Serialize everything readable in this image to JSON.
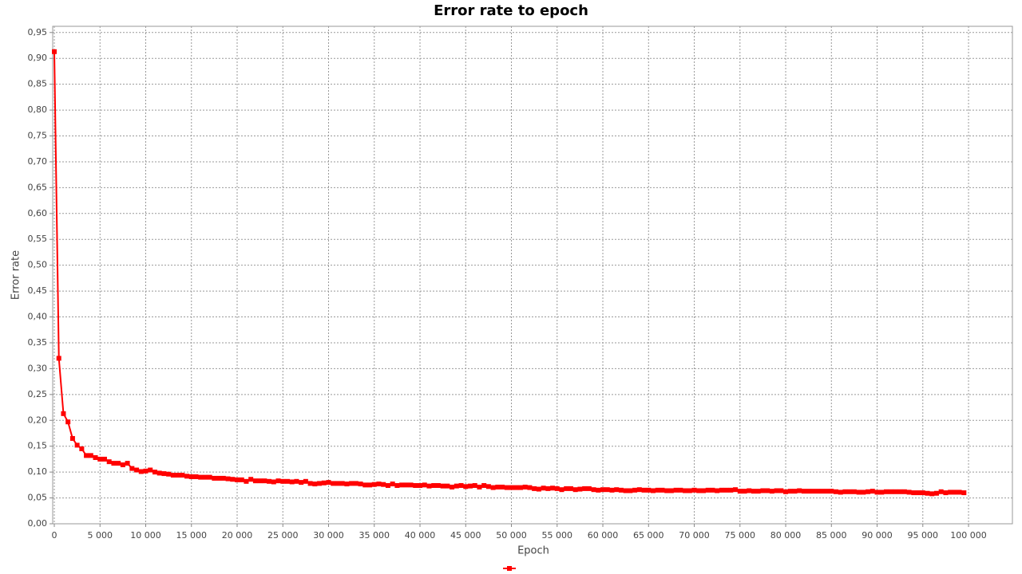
{
  "chart_data": {
    "type": "line",
    "title": "Error rate to epoch",
    "x_label": "Epoch",
    "y_label": "Error rate",
    "x": [
      0,
      500,
      1000,
      1500,
      2000,
      2500,
      3000,
      3500,
      4000,
      4500,
      5000,
      5500,
      6000,
      6500,
      7000,
      7500,
      8000,
      8500,
      9000,
      9500,
      10000,
      10500,
      11000,
      11500,
      12000,
      12500,
      13000,
      13500,
      14000,
      14500,
      15000,
      15500,
      16000,
      16500,
      17000,
      17500,
      18000,
      18500,
      19000,
      19500,
      20000,
      20500,
      21000,
      21500,
      22000,
      22500,
      23000,
      23500,
      24000,
      24500,
      25000,
      25500,
      26000,
      26500,
      27000,
      27500,
      28000,
      28500,
      29000,
      29500,
      30000,
      30500,
      31000,
      31500,
      32000,
      32500,
      33000,
      33500,
      34000,
      34500,
      35000,
      35500,
      36000,
      36500,
      37000,
      37500,
      38000,
      38500,
      39000,
      39500,
      40000,
      40500,
      41000,
      41500,
      42000,
      42500,
      43000,
      43500,
      44000,
      44500,
      45000,
      45500,
      46000,
      46500,
      47000,
      47500,
      48000,
      48500,
      49000,
      49500,
      50000,
      50500,
      51000,
      51500,
      52000,
      52500,
      53000,
      53500,
      54000,
      54500,
      55000,
      55500,
      56000,
      56500,
      57000,
      57500,
      58000,
      58500,
      59000,
      59500,
      60000,
      60500,
      61000,
      61500,
      62000,
      62500,
      63000,
      63500,
      64000,
      64500,
      65000,
      65500,
      66000,
      66500,
      67000,
      67500,
      68000,
      68500,
      69000,
      69500,
      70000,
      70500,
      71000,
      71500,
      72000,
      72500,
      73000,
      73500,
      74000,
      74500,
      75000,
      75500,
      76000,
      76500,
      77000,
      77500,
      78000,
      78500,
      79000,
      79500,
      80000,
      80500,
      81000,
      81500,
      82000,
      82500,
      83000,
      83500,
      84000,
      84500,
      85000,
      85500,
      86000,
      86500,
      87000,
      87500,
      88000,
      88500,
      89000,
      89500,
      90000,
      90500,
      91000,
      91500,
      92000,
      92500,
      93000,
      93500,
      94000,
      94500,
      95000,
      95500,
      96000,
      96500,
      97000,
      97500,
      98000,
      98500,
      99000,
      99500
    ],
    "series": [
      {
        "color": "#ff0000",
        "values": [
          0.913,
          0.32,
          0.213,
          0.197,
          0.165,
          0.152,
          0.145,
          0.132,
          0.132,
          0.128,
          0.125,
          0.125,
          0.12,
          0.117,
          0.117,
          0.114,
          0.117,
          0.107,
          0.104,
          0.101,
          0.102,
          0.104,
          0.1,
          0.098,
          0.097,
          0.096,
          0.094,
          0.094,
          0.094,
          0.092,
          0.091,
          0.091,
          0.09,
          0.09,
          0.09,
          0.088,
          0.088,
          0.088,
          0.087,
          0.086,
          0.085,
          0.085,
          0.082,
          0.086,
          0.083,
          0.083,
          0.083,
          0.082,
          0.081,
          0.083,
          0.082,
          0.082,
          0.081,
          0.082,
          0.08,
          0.082,
          0.078,
          0.077,
          0.078,
          0.079,
          0.08,
          0.078,
          0.078,
          0.078,
          0.077,
          0.078,
          0.078,
          0.077,
          0.075,
          0.075,
          0.076,
          0.077,
          0.076,
          0.074,
          0.077,
          0.074,
          0.075,
          0.075,
          0.075,
          0.074,
          0.074,
          0.075,
          0.073,
          0.074,
          0.074,
          0.073,
          0.073,
          0.071,
          0.073,
          0.074,
          0.072,
          0.073,
          0.074,
          0.071,
          0.074,
          0.072,
          0.07,
          0.071,
          0.071,
          0.07,
          0.07,
          0.07,
          0.07,
          0.071,
          0.07,
          0.068,
          0.067,
          0.069,
          0.068,
          0.069,
          0.068,
          0.066,
          0.068,
          0.068,
          0.066,
          0.067,
          0.068,
          0.068,
          0.066,
          0.065,
          0.066,
          0.066,
          0.065,
          0.066,
          0.065,
          0.064,
          0.064,
          0.065,
          0.066,
          0.065,
          0.065,
          0.064,
          0.065,
          0.065,
          0.064,
          0.064,
          0.065,
          0.065,
          0.064,
          0.064,
          0.065,
          0.064,
          0.064,
          0.065,
          0.065,
          0.064,
          0.065,
          0.065,
          0.065,
          0.066,
          0.063,
          0.063,
          0.064,
          0.063,
          0.063,
          0.064,
          0.064,
          0.063,
          0.064,
          0.064,
          0.062,
          0.063,
          0.063,
          0.064,
          0.063,
          0.063,
          0.063,
          0.063,
          0.063,
          0.063,
          0.063,
          0.062,
          0.061,
          0.062,
          0.062,
          0.062,
          0.061,
          0.061,
          0.062,
          0.063,
          0.061,
          0.061,
          0.062,
          0.062,
          0.062,
          0.062,
          0.062,
          0.061,
          0.06,
          0.06,
          0.06,
          0.059,
          0.058,
          0.059,
          0.062,
          0.06,
          0.061,
          0.061,
          0.061,
          0.06
        ]
      }
    ],
    "xlim": [
      -175,
      104800
    ],
    "ylim": [
      0,
      0.962
    ],
    "xticks": [
      0,
      {
        "value": 5000,
        "label": "5 000"
      },
      {
        "value": 10000,
        "label": "10 000"
      },
      {
        "value": 15000,
        "label": "15 000"
      },
      {
        "value": 20000,
        "label": "20 000"
      },
      {
        "value": 25000,
        "label": "25 000"
      },
      {
        "value": 30000,
        "label": "30 000"
      },
      {
        "value": 35000,
        "label": "35 000"
      },
      {
        "value": 40000,
        "label": "40 000"
      },
      {
        "value": 45000,
        "label": "45 000"
      },
      {
        "value": 50000,
        "label": "50 000"
      },
      {
        "value": 55000,
        "label": "55 000"
      },
      {
        "value": 60000,
        "label": "60 000"
      },
      {
        "value": 65000,
        "label": "65 000"
      },
      {
        "value": 70000,
        "label": "70 000"
      },
      {
        "value": 75000,
        "label": "75 000"
      },
      {
        "value": 80000,
        "label": "80 000"
      },
      {
        "value": 85000,
        "label": "85 000"
      },
      {
        "value": 90000,
        "label": "90 000"
      },
      {
        "value": 95000,
        "label": "95 000"
      },
      {
        "value": 100000,
        "label": "100 000"
      }
    ],
    "yticks": [
      {
        "value": 0,
        "label": "0,00"
      },
      {
        "value": 0.05,
        "label": "0,05"
      },
      {
        "value": 0.1,
        "label": "0,10"
      },
      {
        "value": 0.15,
        "label": "0,15"
      },
      {
        "value": 0.2,
        "label": "0,20"
      },
      {
        "value": 0.25,
        "label": "0,25"
      },
      {
        "value": 0.3,
        "label": "0,30"
      },
      {
        "value": 0.35,
        "label": "0,35"
      },
      {
        "value": 0.4,
        "label": "0,40"
      },
      {
        "value": 0.45,
        "label": "0,45"
      },
      {
        "value": 0.5,
        "label": "0,50"
      },
      {
        "value": 0.55,
        "label": "0,55"
      },
      {
        "value": 0.6,
        "label": "0,60"
      },
      {
        "value": 0.65,
        "label": "0,65"
      },
      {
        "value": 0.7,
        "label": "0,70"
      },
      {
        "value": 0.75,
        "label": "0,75"
      },
      {
        "value": 0.8,
        "label": "0,80"
      },
      {
        "value": 0.85,
        "label": "0,85"
      },
      {
        "value": 0.9,
        "label": "0,90"
      },
      {
        "value": 0.95,
        "label": "0,95"
      }
    ],
    "grid": true
  }
}
